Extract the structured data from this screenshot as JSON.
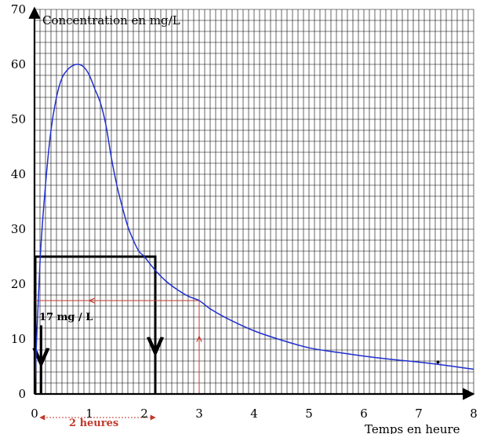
{
  "chart_data": {
    "type": "line",
    "xlabel": "Temps en heure",
    "ylabel": "Concentration en mg/L",
    "xlim": [
      0,
      8
    ],
    "ylim": [
      0,
      70
    ],
    "xticks": [
      0,
      1,
      2,
      3,
      4,
      5,
      6,
      7,
      8
    ],
    "yticks": [
      0,
      10,
      20,
      30,
      40,
      50,
      60,
      70
    ],
    "grid": true,
    "minor_grid_step_x": 0.1,
    "minor_grid_step_y": 2,
    "series": [
      {
        "color": "#1f2fd0",
        "x": [
          0,
          0.1,
          0.2,
          0.3,
          0.4,
          0.5,
          0.6,
          0.7,
          0.8,
          0.9,
          1.0,
          1.1,
          1.2,
          1.3,
          1.4,
          1.5,
          1.6,
          1.7,
          1.8,
          1.9,
          2.0,
          2.2,
          2.4,
          2.6,
          2.8,
          3.0,
          3.2,
          3.5,
          4.0,
          4.5,
          5.0,
          5.5,
          6.0,
          6.5,
          7.0,
          7.5,
          8.0
        ],
        "values": [
          0,
          24,
          38,
          48,
          54,
          57.5,
          59,
          59.8,
          60,
          59.5,
          58,
          55.5,
          53,
          49,
          43,
          38,
          34,
          30.5,
          28,
          26,
          25,
          22.5,
          20.5,
          19,
          17.8,
          17,
          15.5,
          13.8,
          11.5,
          9.8,
          8.4,
          7.6,
          6.9,
          6.3,
          5.8,
          5.2,
          4.5
        ]
      }
    ],
    "annotations": {
      "rectangle": {
        "x0": 0,
        "x1": 2.2,
        "y": 25,
        "color": "#000000"
      },
      "left_arrow_x": 0.12,
      "right_arrow_x": 2.2,
      "red_path": {
        "x": 3,
        "y": 17,
        "color": "#c0392b"
      },
      "double_arrow": {
        "x0": 0.1,
        "x1": 2.2,
        "color": "#c0392b"
      },
      "red_label": "2 heures",
      "black_label": "17 mg / L",
      "marker": {
        "x": 7.35,
        "y": 5.8
      }
    }
  }
}
